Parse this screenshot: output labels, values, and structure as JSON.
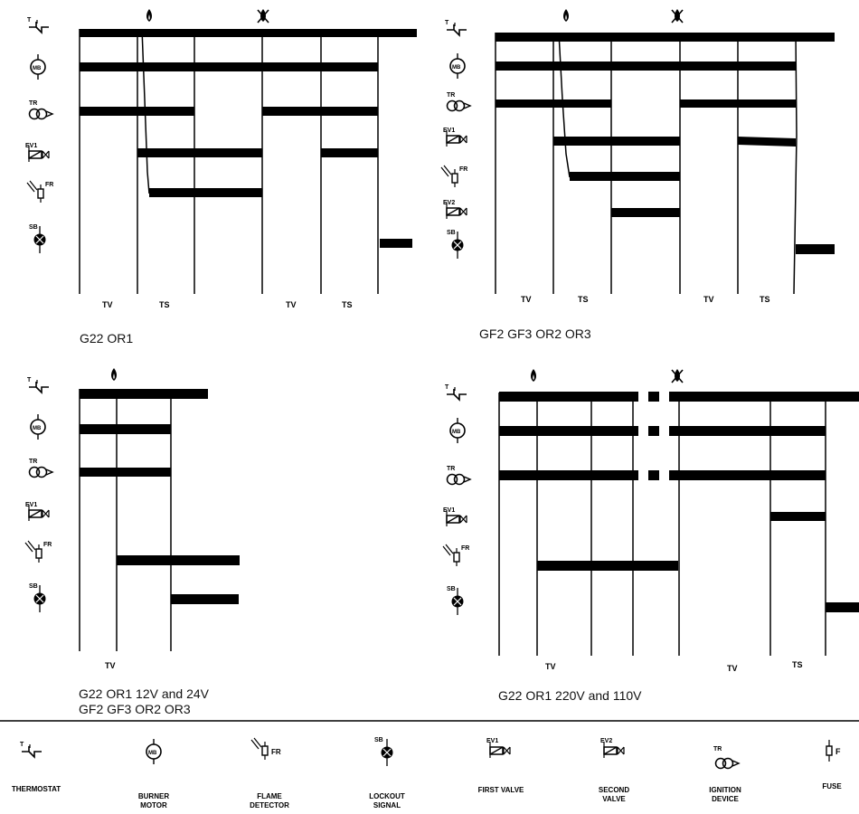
{
  "diagrams": [
    {
      "caption_lines": [
        "G22 OR1"
      ],
      "phase_labels": [
        "TV",
        "TS",
        "TV",
        "TS"
      ],
      "rows": [
        "thermostat",
        "burner-motor",
        "ignition-device",
        "first-valve",
        "flame-detector",
        "lockout-signal"
      ],
      "row_labels": [
        "T",
        "MB",
        "TR",
        "EV1",
        "FR",
        "SB"
      ]
    },
    {
      "caption_lines": [
        "GF2 GF3 OR2 OR3"
      ],
      "phase_labels": [
        "TV",
        "TS",
        "TV",
        "TS"
      ],
      "rows": [
        "thermostat",
        "burner-motor",
        "ignition-device",
        "first-valve",
        "flame-detector",
        "second-valve",
        "lockout-signal"
      ],
      "row_labels": [
        "T",
        "MB",
        "TR",
        "EV1",
        "FR",
        "EV2",
        "SB"
      ]
    },
    {
      "caption_lines": [
        "G22 OR1 12V and 24V",
        "GF2 GF3 OR2 OR3"
      ],
      "phase_labels": [
        "TV"
      ],
      "rows": [
        "thermostat",
        "burner-motor",
        "ignition-device",
        "first-valve",
        "flame-detector",
        "lockout-signal"
      ],
      "row_labels": [
        "T",
        "MB",
        "TR",
        "EV1",
        "FR",
        "SB"
      ]
    },
    {
      "caption_lines": [
        "G22 OR1 220V and 110V"
      ],
      "phase_labels": [
        "TV",
        "TV",
        "TS"
      ],
      "rows": [
        "thermostat",
        "burner-motor",
        "ignition-device",
        "first-valve",
        "flame-detector",
        "lockout-signal"
      ],
      "row_labels": [
        "T",
        "MB",
        "TR",
        "EV1",
        "FR",
        "SB"
      ]
    }
  ],
  "legend": [
    {
      "icon": "thermostat-icon",
      "tag": "T",
      "lines": [
        "THERMOSTAT"
      ]
    },
    {
      "icon": "burner-motor-icon",
      "tag": "MB",
      "lines": [
        "BURNER",
        "MOTOR"
      ]
    },
    {
      "icon": "flame-detector-icon",
      "tag": "FR",
      "lines": [
        "FLAME",
        "DETECTOR"
      ]
    },
    {
      "icon": "lockout-signal-icon",
      "tag": "SB",
      "lines": [
        "LOCKOUT",
        "SIGNAL"
      ]
    },
    {
      "icon": "first-valve-icon",
      "tag": "EV1",
      "lines": [
        "FIRST VALVE"
      ]
    },
    {
      "icon": "second-valve-icon",
      "tag": "EV2",
      "lines": [
        "SECOND",
        "VALVE"
      ]
    },
    {
      "icon": "ignition-device-icon",
      "tag": "TR",
      "lines": [
        "IGNITION",
        "DEVICE"
      ]
    },
    {
      "icon": "fuse-icon",
      "tag": "F",
      "lines": [
        "FUSE"
      ]
    }
  ]
}
